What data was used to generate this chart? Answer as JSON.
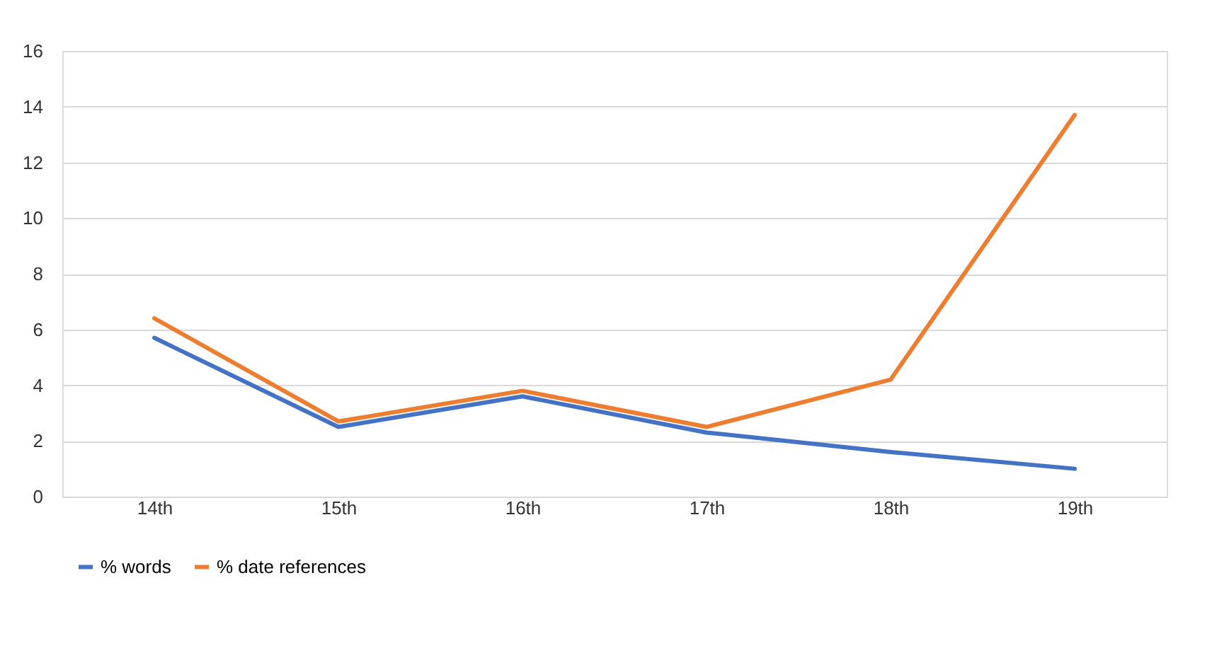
{
  "chart_data": {
    "type": "line",
    "categories": [
      "14th",
      "15th",
      "16th",
      "17th",
      "18th",
      "19th"
    ],
    "series": [
      {
        "name": "% words",
        "color": "#4472c4",
        "values": [
          5.7,
          2.5,
          3.6,
          2.3,
          1.6,
          1.0
        ]
      },
      {
        "name": "% date references",
        "color": "#ed7d31",
        "values": [
          6.4,
          2.7,
          3.8,
          2.5,
          4.2,
          13.7
        ]
      }
    ],
    "ylim": [
      0,
      16
    ],
    "yticks": [
      0,
      2,
      4,
      6,
      8,
      10,
      12,
      14,
      16
    ],
    "grid": "y",
    "legend": "bottom",
    "marker": "none",
    "line_style": "solid"
  }
}
